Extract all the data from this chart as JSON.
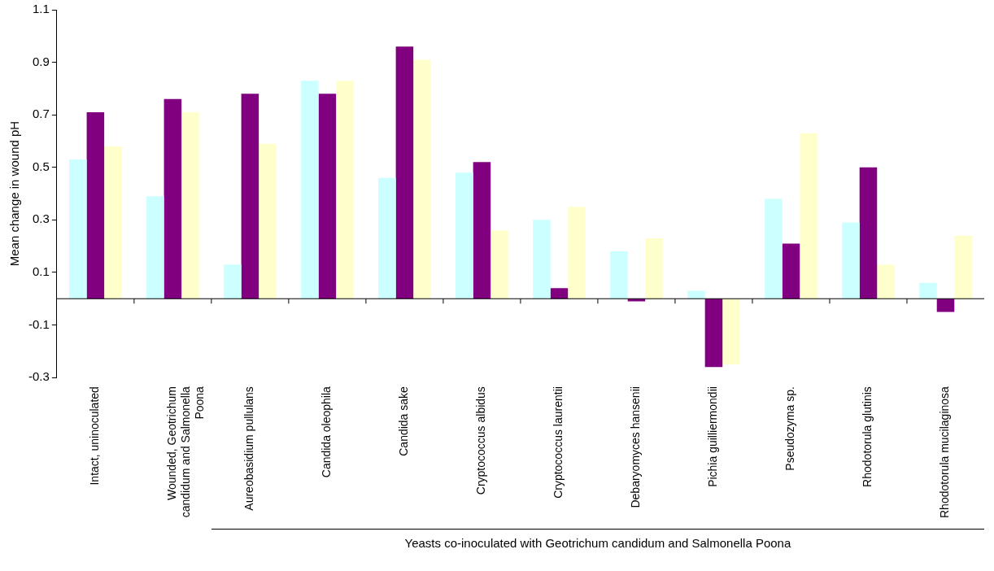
{
  "chart_data": {
    "type": "bar",
    "ylabel": "Mean change in wound pH",
    "categories": [
      "Intact, uninoculated",
      "Wounded, Geotrichum candidum and Salmonella Poona",
      "Aureobasidium pullulans",
      "Candida oleophila",
      "Candida sake",
      "Cryptococcus albidus",
      "Cryptococcus laurentii",
      "Debaryomyces hansenii",
      "Pichia guilliermondii",
      "Pseudozyma sp.",
      "Rhodotorula glutinis",
      "Rhodotorula mucilaginosa"
    ],
    "series": [
      {
        "color": "#ccffff",
        "values": [
          0.53,
          0.39,
          0.13,
          0.83,
          0.46,
          0.48,
          0.3,
          0.18,
          0.03,
          0.38,
          0.29,
          0.06
        ]
      },
      {
        "color": "#800080",
        "values": [
          0.71,
          0.76,
          0.78,
          0.78,
          0.96,
          0.52,
          0.04,
          -0.01,
          -0.26,
          0.21,
          0.5,
          -0.05
        ]
      },
      {
        "color": "#ffffcc",
        "values": [
          0.58,
          0.71,
          0.59,
          0.83,
          0.91,
          0.26,
          0.35,
          0.23,
          -0.25,
          0.63,
          0.13,
          0.24
        ]
      }
    ],
    "ylim": [
      -0.3,
      1.1
    ],
    "yticks": [
      -0.3,
      -0.1,
      0.1,
      0.3,
      0.5,
      0.7,
      0.9,
      1.1
    ],
    "grid": false,
    "legend": false,
    "annotations": [
      "Yeasts co-inoculated with Geotrichum candidum and Salmonella Poona"
    ]
  }
}
